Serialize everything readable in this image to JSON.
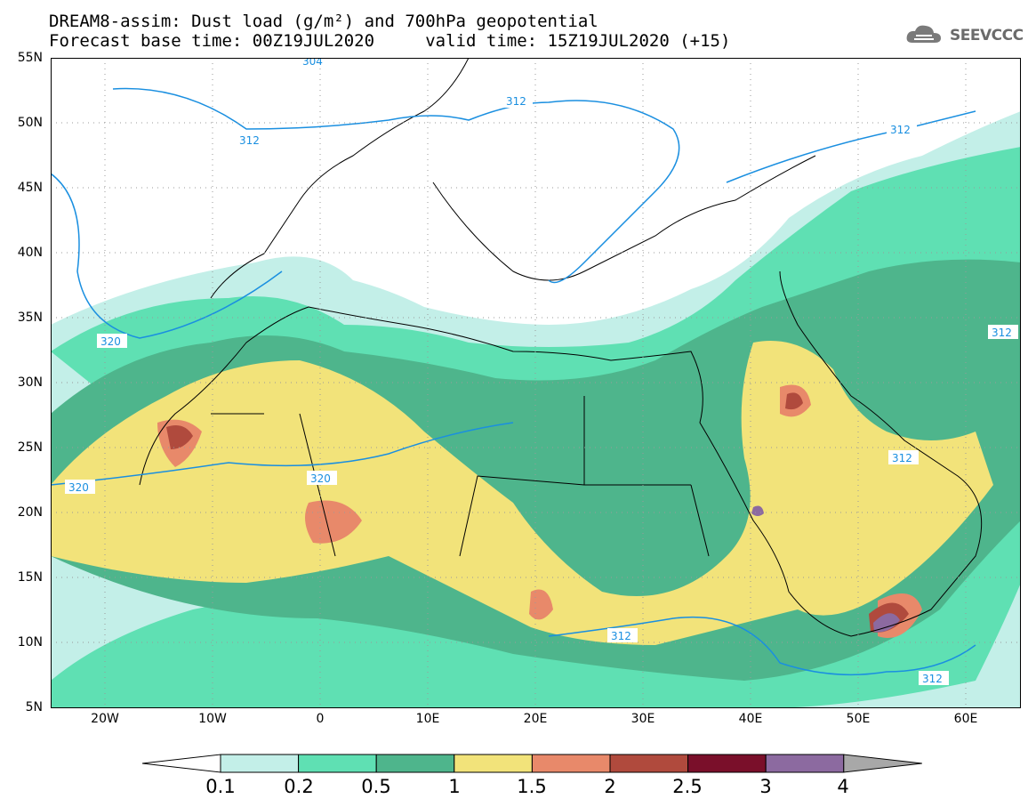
{
  "title": {
    "line1": "DREAM8-assim: Dust load (g/m²) and 700hPa geopotential",
    "line2": "Forecast base time: 00Z19JUL2020     valid time: 15Z19JUL2020 (+15)"
  },
  "logo": {
    "text": "SEEVCCC",
    "icon": "cloud-logo-icon"
  },
  "map": {
    "lat_range": [
      5,
      55
    ],
    "lon_range": [
      -25,
      65
    ],
    "lat_labels": [
      "55N",
      "50N",
      "45N",
      "40N",
      "35N",
      "30N",
      "25N",
      "20N",
      "15N",
      "10N",
      "5N"
    ],
    "lon_labels": [
      "20W",
      "10W",
      "0",
      "10E",
      "20E",
      "30E",
      "40E",
      "50E",
      "60E"
    ],
    "contour_labels": [
      "320",
      "320",
      "320",
      "312",
      "312",
      "312",
      "312",
      "312",
      "312",
      "312",
      "304"
    ]
  },
  "colorbar": {
    "labels": [
      "0.1",
      "0.2",
      "0.5",
      "1",
      "1.5",
      "2",
      "2.5",
      "3",
      "4"
    ],
    "colors": [
      "#ffffff",
      "#c3efe8",
      "#5fe0b3",
      "#4eb58c",
      "#f2e37a",
      "#e8896a",
      "#b04a3d",
      "#7a0f2a",
      "#8c6aa0",
      "#a8a8a8"
    ]
  },
  "colors": {
    "contour": "#1a8fe0",
    "boundaries": "#000000"
  }
}
